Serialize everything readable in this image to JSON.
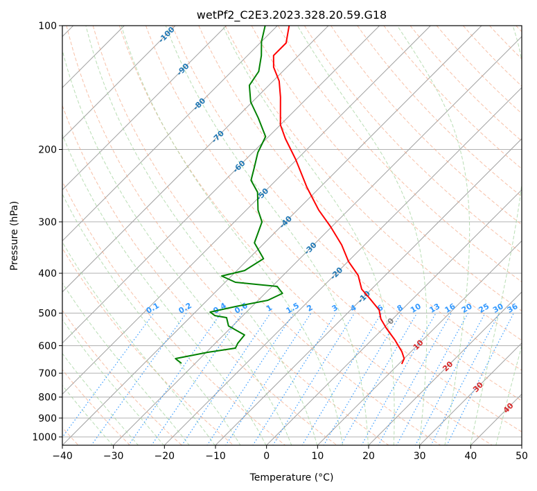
{
  "chart_data": {
    "type": "line",
    "subtype": "skew-t log-p",
    "title": "wetPf2_C2E3.2023.328.20.59.G18",
    "xlabel": "Temperature (°C)",
    "ylabel": "Pressure (hPa)",
    "xlim": [
      -40,
      50
    ],
    "ylim_hpa": [
      1048,
      100
    ],
    "x_ticks": [
      "−40",
      "−30",
      "−20",
      "−10",
      "0",
      "10",
      "20",
      "30",
      "40",
      "50"
    ],
    "x_tick_values": [
      -40,
      -30,
      -20,
      -10,
      0,
      10,
      20,
      30,
      40,
      50
    ],
    "y_ticks": [
      "100",
      "200",
      "300",
      "400",
      "500",
      "600",
      "700",
      "800",
      "900",
      "1000"
    ],
    "y_tick_values": [
      100,
      200,
      300,
      400,
      500,
      600,
      700,
      800,
      900,
      1000
    ],
    "grid": true,
    "series": [
      {
        "name": "Temperature",
        "color": "#ff0000",
        "p": [
          100,
          110.2,
          118.2,
          126.2,
          136.4,
          149.2,
          174.2,
          188.3,
          211.6,
          247.1,
          280.8,
          308.3,
          341.2,
          374.5,
          404.8,
          437.3,
          460,
          491.4,
          516.8,
          543.5,
          580.6,
          620.4,
          645,
          665
        ],
        "t": [
          -77.7,
          -74.9,
          -74.9,
          -72.6,
          -68.8,
          -65.4,
          -60.0,
          -56.3,
          -50.2,
          -42.6,
          -35.8,
          -30.2,
          -24.5,
          -19.9,
          -15.3,
          -11.9,
          -8.6,
          -4.4,
          -2.3,
          0.5,
          4.5,
          8.2,
          10.0,
          10.6
        ]
      },
      {
        "name": "Dewpoint",
        "color": "#008000",
        "p": [
          100,
          109.3,
          118.2,
          129.2,
          139.7,
          153.3,
          167.6,
          186.1,
          203.5,
          222.6,
          237.7,
          254,
          280.8,
          300.1,
          337.3,
          368.7,
          393.9,
          406.3,
          420.7,
          430.6,
          447.7,
          465.4,
          482,
          497.2,
          507,
          512.9,
          537.3,
          565,
          592,
          608.3,
          622.8,
          645,
          662.4
        ],
        "t": [
          -82.4,
          -80.0,
          -77.3,
          -74.7,
          -73.8,
          -70.3,
          -65.7,
          -60.6,
          -59.0,
          -56.6,
          -54.9,
          -51.3,
          -47.7,
          -44.6,
          -42.0,
          -37.1,
          -38.5,
          -41.9,
          -38.0,
          -29.0,
          -26.6,
          -28.1,
          -33.2,
          -37.1,
          -35.5,
          -32.8,
          -30.8,
          -25.9,
          -25.6,
          -25.1,
          -29.7,
          -34.8,
          -32.7
        ]
      }
    ],
    "isotherm_labels": [
      {
        "value": -100,
        "text": "-100"
      },
      {
        "value": -90,
        "text": "-90"
      },
      {
        "value": -80,
        "text": "-80"
      },
      {
        "value": -70,
        "text": "-70"
      },
      {
        "value": -60,
        "text": "-60"
      },
      {
        "value": -50,
        "text": "-50"
      },
      {
        "value": -40,
        "text": "-40"
      },
      {
        "value": -30,
        "text": "-30"
      },
      {
        "value": -20,
        "text": "-20"
      },
      {
        "value": -10,
        "text": "-10"
      },
      {
        "value": 0,
        "text": "0"
      },
      {
        "value": 10,
        "text": "10"
      },
      {
        "value": 20,
        "text": "20"
      },
      {
        "value": 30,
        "text": "30"
      },
      {
        "value": 40,
        "text": "40"
      }
    ],
    "mixing_ratio_lines": [
      {
        "value": 0.1,
        "text": "0.1"
      },
      {
        "value": 0.2,
        "text": "0.2"
      },
      {
        "value": 0.4,
        "text": "0.4"
      },
      {
        "value": 0.6,
        "text": "0.6"
      },
      {
        "value": 1,
        "text": "1"
      },
      {
        "value": 1.5,
        "text": "1.5"
      },
      {
        "value": 2,
        "text": "2"
      },
      {
        "value": 3,
        "text": "3"
      },
      {
        "value": 4,
        "text": "4"
      },
      {
        "value": 6,
        "text": "6"
      },
      {
        "value": 8,
        "text": "8"
      },
      {
        "value": 10,
        "text": "10"
      },
      {
        "value": 13,
        "text": "13"
      },
      {
        "value": 16,
        "text": "16"
      },
      {
        "value": 20,
        "text": "20"
      },
      {
        "value": 25,
        "text": "25"
      },
      {
        "value": 30,
        "text": "30"
      },
      {
        "value": 36,
        "text": "36"
      }
    ],
    "colors": {
      "temperature": "#ff0000",
      "dewpoint": "#008000",
      "isotherm": "#a0a0a0",
      "dry_adiabat": "#f4a582",
      "moist_adiabat": "#a6d4a0",
      "mixing_ratio": "#3399ff",
      "label_negative": "#1f77b4",
      "label_zero": "#808080",
      "label_positive": "#d62728"
    }
  }
}
